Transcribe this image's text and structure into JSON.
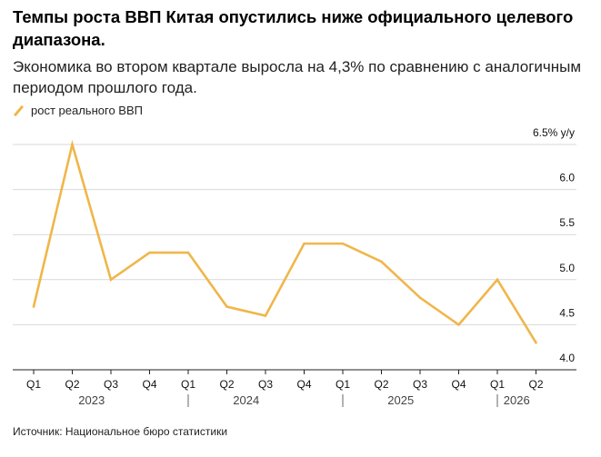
{
  "header": {
    "title": "Темпы роста ВВП Китая опустились ниже официального целевого диапазона.",
    "subtitle": "Экономика во втором квартале выросла на 4,3% по сравнению с аналогичным периодом прошлого года."
  },
  "legend": {
    "label": "рост реального ВВП",
    "color": "#f0b64a"
  },
  "footer": {
    "source": "Источник: Национальное бюро статистики"
  },
  "chart_data": {
    "type": "line",
    "categories": [
      "Q1",
      "Q2",
      "Q3",
      "Q4",
      "Q1",
      "Q2",
      "Q3",
      "Q4",
      "Q1",
      "Q2",
      "Q3",
      "Q4",
      "Q1",
      "Q2"
    ],
    "years": [
      {
        "label": "2023",
        "start": 0,
        "end": 3
      },
      {
        "label": "2024",
        "start": 4,
        "end": 7
      },
      {
        "label": "2025",
        "start": 8,
        "end": 11
      },
      {
        "label": "2026",
        "start": 12,
        "end": 13
      }
    ],
    "series": [
      {
        "name": "рост реального ВВП",
        "color": "#f0b64a",
        "values": [
          4.7,
          6.5,
          5.0,
          5.3,
          5.3,
          4.7,
          4.6,
          5.4,
          5.4,
          5.2,
          4.8,
          4.5,
          5.0,
          4.3
        ]
      }
    ],
    "ylim": [
      4.0,
      6.5
    ],
    "yticks": [
      4.0,
      4.5,
      5.0,
      5.5,
      6.0,
      6.5
    ],
    "ytick_labels": [
      "4.0",
      "4.5",
      "5.0",
      "5.5",
      "6.0",
      "6.5% y/y"
    ],
    "grid": true
  }
}
